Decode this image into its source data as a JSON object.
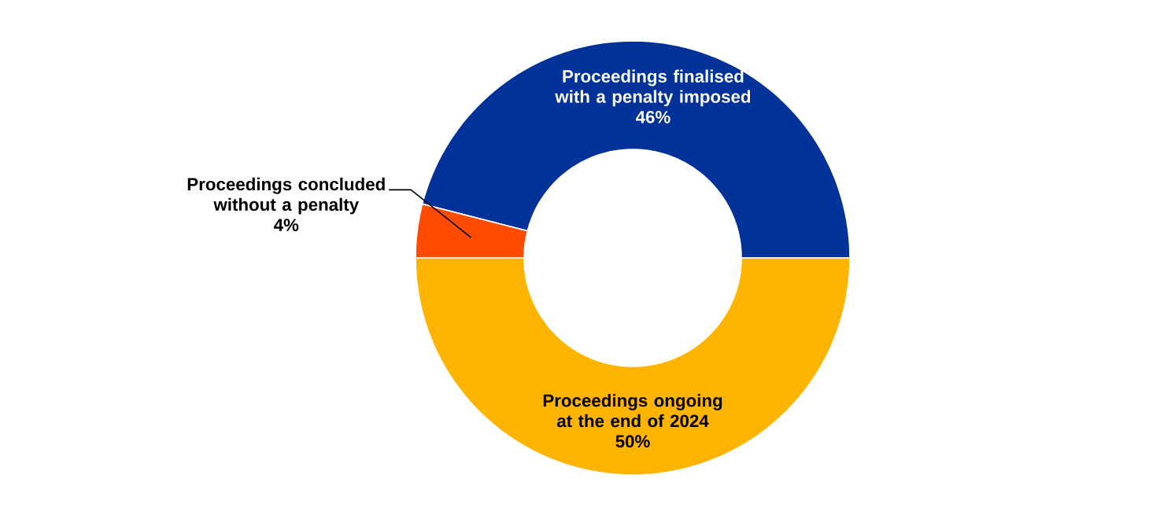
{
  "chart_data": {
    "type": "donut",
    "categories": [
      "Proceedings finalised with a penalty imposed",
      "Proceedings concluded without a penalty",
      "Proceedings ongoing at the end of 2024"
    ],
    "values": [
      46,
      4,
      50
    ],
    "value_labels": [
      "46%",
      "4%",
      "50%"
    ],
    "colors": [
      "#003299",
      "#ff4b00",
      "#ffb400"
    ],
    "legend": false
  }
}
